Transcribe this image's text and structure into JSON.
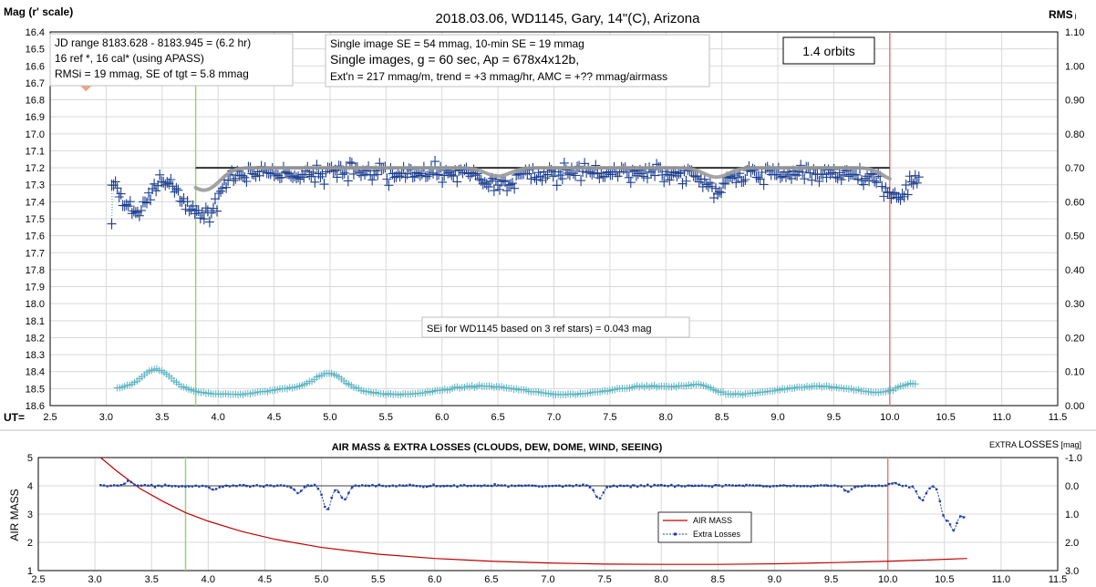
{
  "chart_data": [
    {
      "type": "scatter",
      "title": "2018.03.06,  WD1145, Gary, 14\"(C), Arizona",
      "ylabel": "Mag (r' scale)",
      "y2label": "RMS",
      "y2label_suffix": "i",
      "xlabel": "UT=",
      "xlim": [
        2.5,
        11.5
      ],
      "ylim": [
        16.4,
        18.6
      ],
      "y_inverted": true,
      "y2lim": [
        0.0,
        1.1
      ],
      "xticks": [
        "2.5",
        "3.0",
        "3.5",
        "4.0",
        "4.5",
        "5.0",
        "5.5",
        "6.0",
        "6.5",
        "7.0",
        "7.5",
        "8.0",
        "8.5",
        "9.0",
        "9.5",
        "10.0",
        "10.5",
        "11.0",
        "11.5"
      ],
      "yticks": [
        "16.4",
        "16.5",
        "16.6",
        "16.7",
        "16.8",
        "16.9",
        "17.0",
        "17.1",
        "17.2",
        "17.3",
        "17.4",
        "17.5",
        "17.6",
        "17.7",
        "17.8",
        "17.9",
        "18.0",
        "18.1",
        "18.2",
        "18.3",
        "18.4",
        "18.5",
        "18.6"
      ],
      "y2ticks": [
        "1.10",
        "1.00",
        "0.90",
        "0.80",
        "0.70",
        "0.60",
        "0.50",
        "0.40",
        "0.30",
        "0.20",
        "0.10",
        "0.00"
      ],
      "grid": true,
      "annotations": {
        "info_left": [
          "JD range  8183.628 - 8183.945  = (6.2 hr)",
          "16 ref *, 16 cal* (using APASS)",
          "RMSi = 19 mmag, SE of tgt = 5.8 mmag"
        ],
        "info_mid": [
          "Single image SE = 54 mmag, 10-min SE = 19 mmag",
          "Single images, g = 60 sec, Ap = 678x4x12b,",
          "Ext'n = 217  mmag/m, trend = +3 mmag/hr, AMC = +?? mmag/airmass"
        ],
        "orbits": "1.4 orbits",
        "sei_note": "SEi for WD1145 based on 3 ref stars) = 0.043 mag"
      },
      "vertical_markers": [
        {
          "x": 3.8,
          "color": "#9bd17a"
        },
        {
          "x": 10.0,
          "color": "#e77b7b"
        }
      ],
      "series": [
        {
          "role": "target magnitude",
          "style": "plus-markers with dotted connector",
          "color": "#1f3f8f",
          "x_range": [
            3.05,
            10.27
          ],
          "baseline_mag": 17.23,
          "dips": [
            [
              3.25,
              17.42
            ],
            [
              3.78,
              17.36
            ],
            [
              3.93,
              17.4
            ],
            [
              6.5,
              17.32
            ],
            [
              8.45,
              17.33
            ],
            [
              10.05,
              17.36
            ]
          ],
          "extreme": [
            [
              3.05,
              17.53
            ]
          ],
          "outlier": {
            "x": 2.82,
            "mag": 16.72,
            "color": "#f2a080"
          }
        },
        {
          "role": "model fit",
          "color": "#9a9a9a",
          "x_range": [
            3.8,
            10.0
          ]
        },
        {
          "role": "reference level",
          "color": "#303030",
          "x": [
            3.8,
            10.0
          ],
          "mag": 17.2
        },
        {
          "role": "RMS",
          "style": "plus-markers",
          "color": "#5bb4c2",
          "x_range": [
            3.1,
            10.25
          ],
          "baseline_rms": 0.045,
          "peaks": [
            [
              3.45,
              0.095
            ],
            [
              5.0,
              0.085
            ],
            [
              8.3,
              0.065
            ],
            [
              10.18,
              0.075
            ]
          ]
        }
      ]
    },
    {
      "type": "line",
      "title": "AIR MASS & EXTRA LOSSES (CLOUDS, DEW, DOME, WIND, SEEING)",
      "ylabel": "AIR MASS",
      "y2label": "EXTRA LOSSES [mag]",
      "y2label_prefix": "EXTRA ",
      "y2label_main": "LOSSES",
      "y2label_unit": " [mag]",
      "xlim": [
        2.5,
        11.5
      ],
      "ylim": [
        1,
        5
      ],
      "y2lim": [
        -1.0,
        3.0
      ],
      "y2_inverted": true,
      "xticks": [
        "2.5",
        "3.0",
        "3.5",
        "4.0",
        "4.5",
        "5.0",
        "5.5",
        "6.0",
        "6.5",
        "7.0",
        "7.5",
        "8.0",
        "8.5",
        "9.0",
        "9.5",
        "10.0",
        "10.5",
        "11.0",
        "11.5"
      ],
      "yticks": [
        "5",
        "4",
        "3",
        "2",
        "1"
      ],
      "y2ticks": [
        "-1.0",
        "0.0",
        "1.0",
        "2.0",
        "3.0"
      ],
      "grid": true,
      "vertical_markers": [
        {
          "x": 3.8,
          "color": "#9bd17a"
        },
        {
          "x": 10.0,
          "color": "#e77b7b"
        }
      ],
      "series": [
        {
          "name": "AIR MASS",
          "color": "#c00000",
          "x": [
            3.05,
            3.2,
            3.4,
            3.6,
            3.8,
            4.0,
            4.3,
            4.6,
            5.0,
            5.5,
            6.0,
            6.5,
            7.0,
            7.5,
            8.0,
            8.5,
            9.0,
            9.5,
            10.0,
            10.3,
            10.7
          ],
          "y": [
            5.0,
            4.5,
            3.9,
            3.45,
            3.05,
            2.75,
            2.38,
            2.1,
            1.82,
            1.58,
            1.43,
            1.33,
            1.27,
            1.23,
            1.22,
            1.22,
            1.24,
            1.28,
            1.33,
            1.37,
            1.43
          ]
        },
        {
          "name": "Extra Losses",
          "color": "#1f3fa0",
          "style": "dotted line with small markers",
          "x_range": [
            3.05,
            10.7
          ],
          "baseline_mag": 0.0,
          "features": [
            [
              3.3,
              -0.15
            ],
            [
              4.05,
              0.15
            ],
            [
              4.8,
              0.25
            ],
            [
              5.05,
              0.85
            ],
            [
              5.2,
              0.5
            ],
            [
              7.45,
              0.45
            ],
            [
              9.65,
              0.2
            ],
            [
              10.05,
              -0.1
            ],
            [
              10.3,
              0.5
            ],
            [
              10.5,
              1.05
            ],
            [
              10.58,
              1.4
            ],
            [
              10.65,
              0.6
            ],
            [
              10.7,
              0.8
            ]
          ]
        }
      ],
      "legend_position": "bottom-right"
    }
  ]
}
